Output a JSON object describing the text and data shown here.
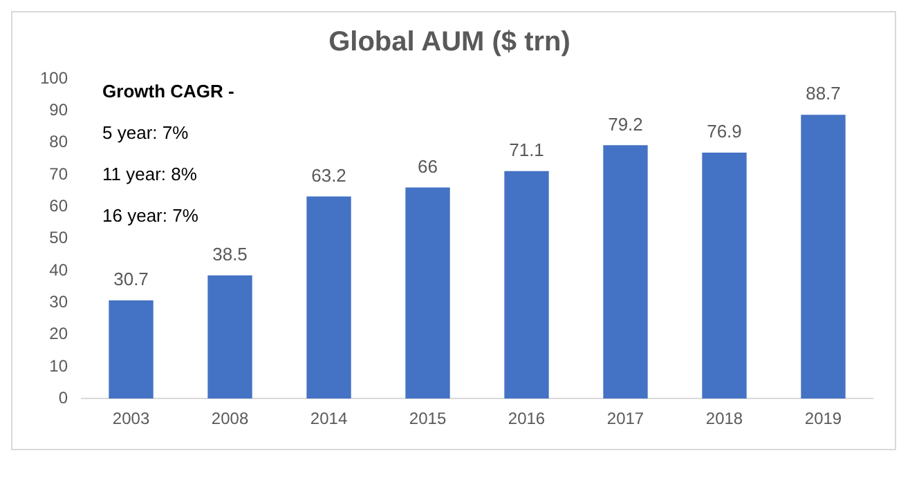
{
  "chart_data": {
    "type": "bar",
    "title": "Global AUM ($ trn)",
    "categories": [
      "2003",
      "2008",
      "2014",
      "2015",
      "2016",
      "2017",
      "2018",
      "2019"
    ],
    "values": [
      30.7,
      38.5,
      63.2,
      66,
      71.1,
      79.2,
      76.9,
      88.7
    ],
    "color": "#4472c4",
    "ylim": [
      0,
      100
    ],
    "yticks": [
      0,
      10,
      20,
      30,
      40,
      50,
      60,
      70,
      80,
      90,
      100
    ],
    "grid": false,
    "data_labels": true,
    "annotations": [
      "Growth CAGR -",
      "5 year: 7%",
      "11 year: 8%",
      "16 year: 7%"
    ]
  }
}
